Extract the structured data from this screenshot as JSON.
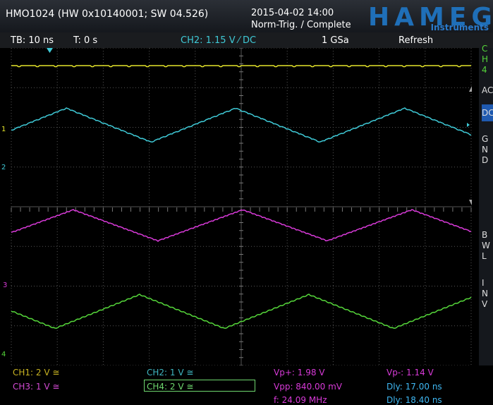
{
  "header": {
    "device": "HMO1024 (HW 0x10140001; SW 04.526)",
    "datetime": "2015-04-02 14:00",
    "trigger_state": "Norm-Trig. / Complete",
    "brand": "HAMEG",
    "brand_sub": "Instruments"
  },
  "status": {
    "timebase": "TB: 10 ns",
    "trigger_time": "T: 0 s",
    "trigger": "CH2: 1.15 V ⁄ DC",
    "sample_rate": "1 GSa",
    "mode": "Refresh"
  },
  "side_menu": {
    "top": [
      "C",
      "H",
      "4"
    ],
    "ac": "AC",
    "dc": "DC",
    "gnd": [
      "G",
      "N",
      "D"
    ],
    "bw": [
      "B",
      "W",
      "L"
    ],
    "inv": [
      "I",
      "N",
      "V"
    ]
  },
  "channel_markers": [
    "1",
    "2",
    "3",
    "4"
  ],
  "channels": [
    {
      "label": "CH1: 2 V ≅",
      "color": "#c9b422"
    },
    {
      "label": "CH2: 1 V ≅",
      "color": "#3fb7c2"
    },
    {
      "label": "CH3: 1 V ≅",
      "color": "#d24ad2"
    },
    {
      "label": "CH4: 2 V ≅",
      "color": "#6fd86f"
    }
  ],
  "measurements": {
    "vp_plus": "Vp+: 1.98 V",
    "vpp": "Vpp: 840.00 mV",
    "freq": "f: 24.09 MHz",
    "vp_minus": "Vp-: 1.14 V",
    "dly1": "Dly: 17.00 ns",
    "dly2": "Dly: 18.40 ns"
  },
  "colors": {
    "ch1": "#e6e62a",
    "ch2": "#3fc9d6",
    "ch3": "#d83ad8",
    "ch4": "#55d63a",
    "measurement": "#d83ad8",
    "delay": "#3fb7f2",
    "brand": "#1f6fb8"
  }
}
